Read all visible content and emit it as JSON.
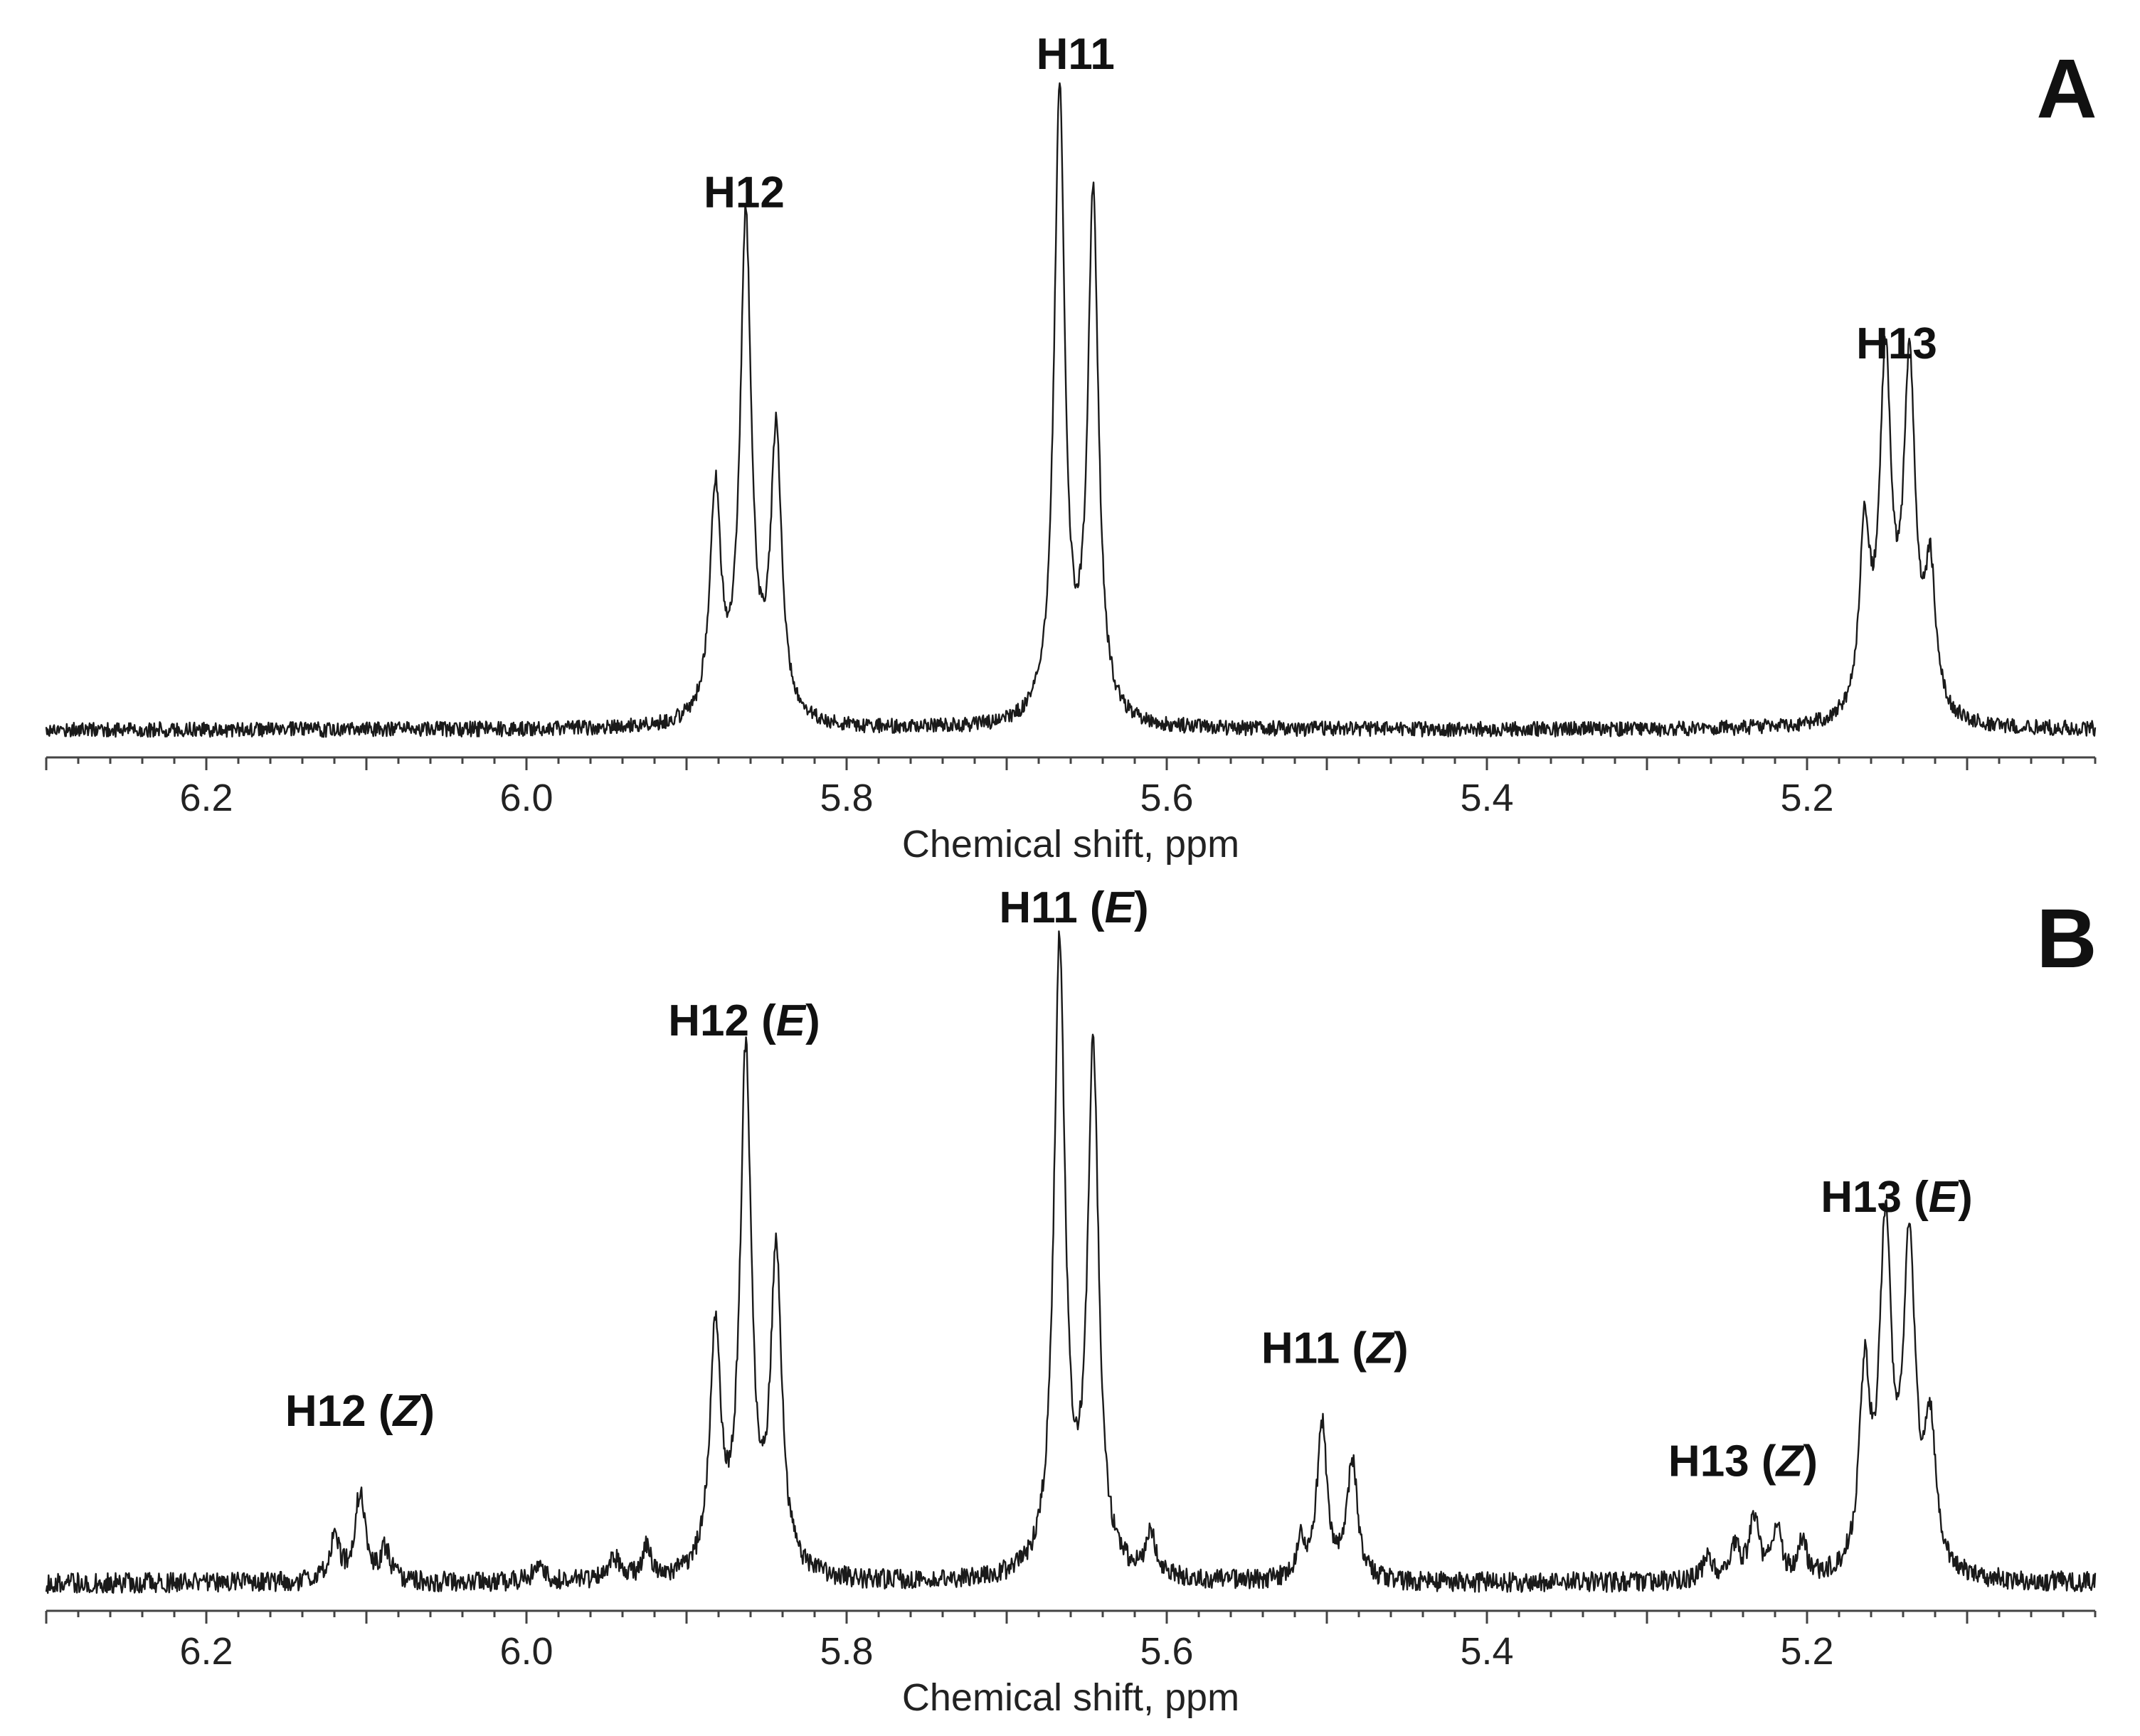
{
  "chart_data": [
    {
      "type": "line",
      "panel": "A",
      "xlabel": "Chemical shift, ppm",
      "xlim": [
        6.3,
        5.02
      ],
      "x_reversed": true,
      "xticks": [
        "6.2",
        "6.0",
        "5.8",
        "5.6",
        "5.4",
        "5.2"
      ],
      "grid": false,
      "legend": "none",
      "noise": 0.012,
      "baseline": 0.01,
      "peaks": [
        {
          "x": 5.882,
          "h": 0.36,
          "w": 0.0042
        },
        {
          "x": 5.863,
          "h": 0.79,
          "w": 0.0042
        },
        {
          "x": 5.844,
          "h": 0.45,
          "w": 0.0042
        },
        {
          "x": 5.667,
          "h": 1.0,
          "w": 0.004
        },
        {
          "x": 5.646,
          "h": 0.83,
          "w": 0.004
        },
        {
          "x": 5.164,
          "h": 0.28,
          "w": 0.004
        },
        {
          "x": 5.151,
          "h": 0.55,
          "w": 0.0045
        },
        {
          "x": 5.136,
          "h": 0.54,
          "w": 0.0045
        },
        {
          "x": 5.123,
          "h": 0.22,
          "w": 0.004
        }
      ],
      "annotations": [
        {
          "text": "H12",
          "x": 5.864,
          "y": 0.84
        },
        {
          "text": "H11",
          "x": 5.657,
          "y": 1.06
        },
        {
          "text": "H13",
          "x": 5.144,
          "y": 0.6
        }
      ]
    },
    {
      "type": "line",
      "panel": "B",
      "xlabel": "Chemical shift, ppm",
      "xlim": [
        6.3,
        5.02
      ],
      "x_reversed": true,
      "xticks": [
        "6.2",
        "6.0",
        "5.8",
        "5.6",
        "5.4",
        "5.2"
      ],
      "grid": false,
      "legend": "none",
      "noise": 0.016,
      "baseline": 0.01,
      "peaks": [
        {
          "x": 6.12,
          "h": 0.07,
          "w": 0.0035
        },
        {
          "x": 6.104,
          "h": 0.14,
          "w": 0.004
        },
        {
          "x": 6.088,
          "h": 0.05,
          "w": 0.0035
        },
        {
          "x": 5.992,
          "h": 0.03,
          "w": 0.004
        },
        {
          "x": 5.945,
          "h": 0.035,
          "w": 0.004
        },
        {
          "x": 5.925,
          "h": 0.05,
          "w": 0.0035
        },
        {
          "x": 5.882,
          "h": 0.38,
          "w": 0.0042
        },
        {
          "x": 5.863,
          "h": 0.82,
          "w": 0.0042
        },
        {
          "x": 5.844,
          "h": 0.5,
          "w": 0.0042
        },
        {
          "x": 5.667,
          "h": 1.0,
          "w": 0.0042
        },
        {
          "x": 5.646,
          "h": 0.83,
          "w": 0.0042
        },
        {
          "x": 5.61,
          "h": 0.07,
          "w": 0.0035
        },
        {
          "x": 5.516,
          "h": 0.06,
          "w": 0.003
        },
        {
          "x": 5.503,
          "h": 0.25,
          "w": 0.0038
        },
        {
          "x": 5.484,
          "h": 0.19,
          "w": 0.0038
        },
        {
          "x": 5.262,
          "h": 0.035,
          "w": 0.0035
        },
        {
          "x": 5.245,
          "h": 0.05,
          "w": 0.0035
        },
        {
          "x": 5.233,
          "h": 0.1,
          "w": 0.0035
        },
        {
          "x": 5.219,
          "h": 0.08,
          "w": 0.0035
        },
        {
          "x": 5.203,
          "h": 0.06,
          "w": 0.003
        },
        {
          "x": 5.164,
          "h": 0.3,
          "w": 0.004
        },
        {
          "x": 5.151,
          "h": 0.53,
          "w": 0.0045
        },
        {
          "x": 5.136,
          "h": 0.51,
          "w": 0.0045
        },
        {
          "x": 5.123,
          "h": 0.22,
          "w": 0.004
        }
      ],
      "annotations": [
        {
          "text": "H12 (Z)",
          "x": 6.104,
          "y": 0.26
        },
        {
          "text": "H12 (E)",
          "x": 5.864,
          "y": 0.88
        },
        {
          "text": "H11 (E)",
          "x": 5.658,
          "y": 1.06
        },
        {
          "text": "H11 (Z)",
          "x": 5.495,
          "y": 0.36
        },
        {
          "text": "H13 (Z)",
          "x": 5.24,
          "y": 0.18
        },
        {
          "text": "H13 (E)",
          "x": 5.144,
          "y": 0.6
        }
      ]
    }
  ]
}
